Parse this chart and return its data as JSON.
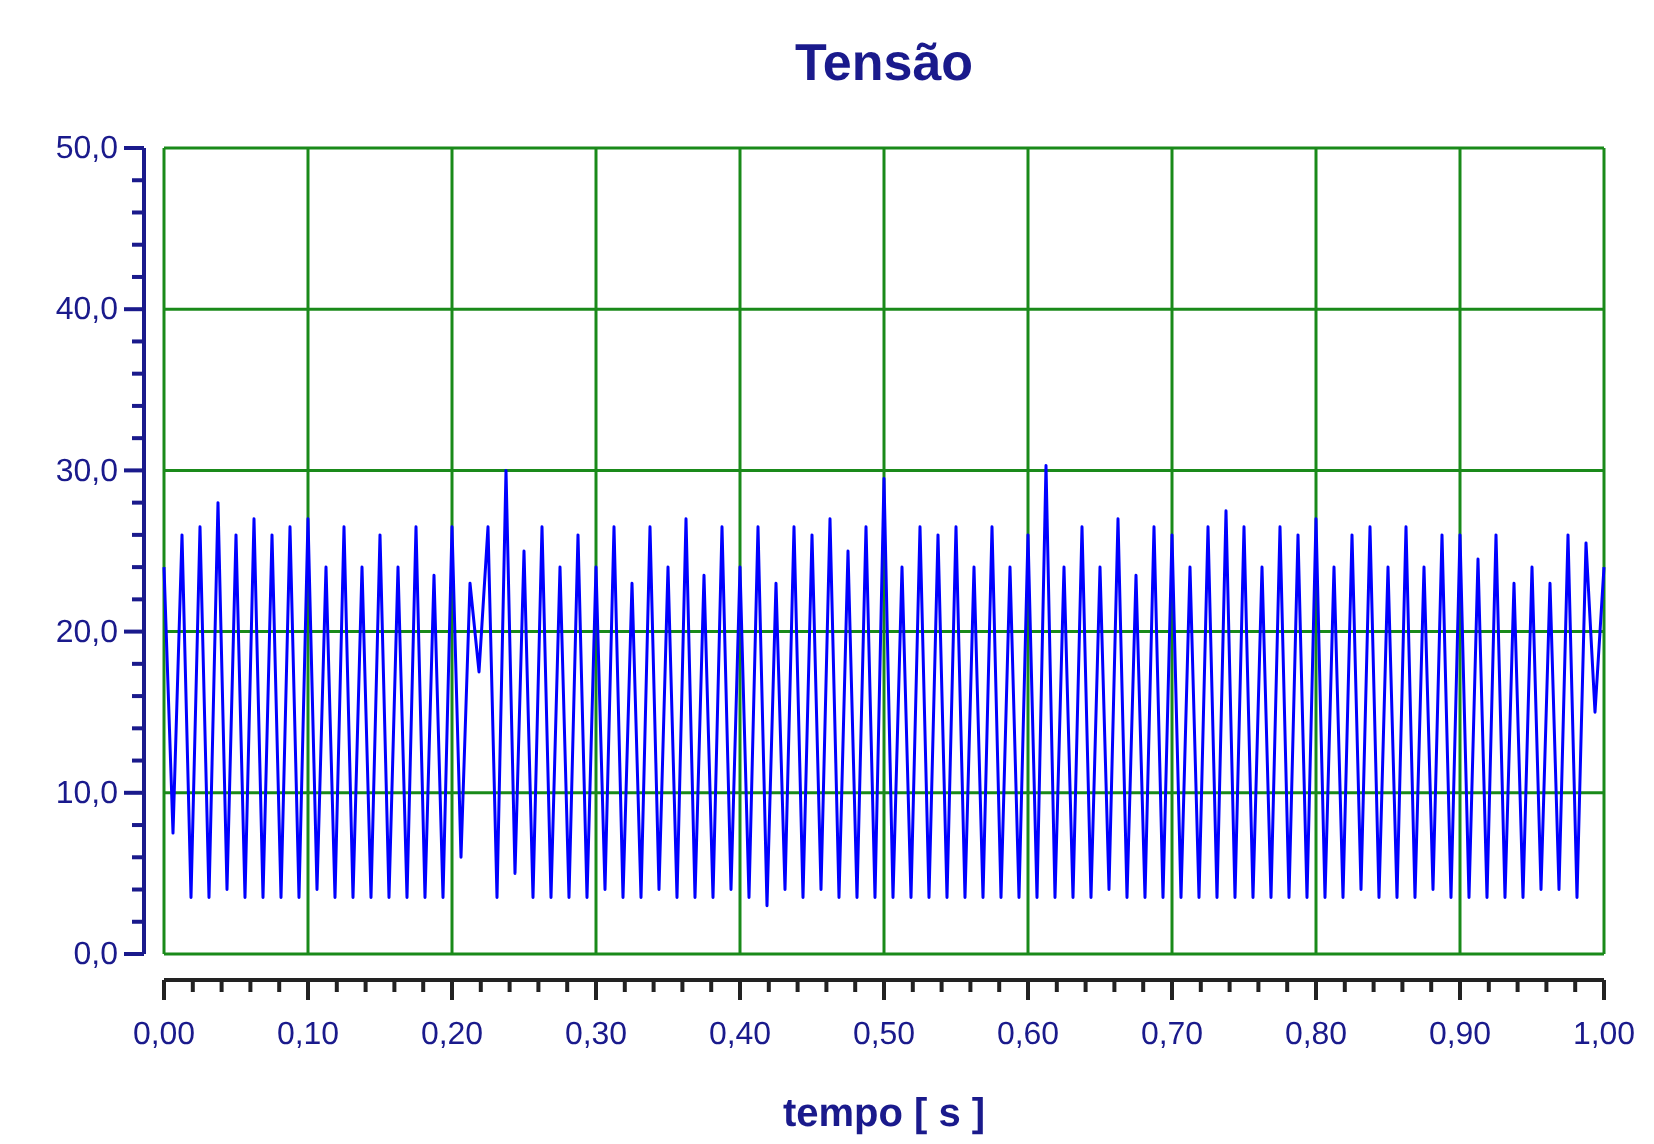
{
  "chart_data": {
    "type": "line",
    "title": "Tensão",
    "xlabel": "tempo [ s ]",
    "xlim": [
      0,
      1
    ],
    "ylim": [
      0,
      50
    ],
    "xticks": [
      {
        "value": 0,
        "label": "0,00"
      },
      {
        "value": 0.1,
        "label": "0,10"
      },
      {
        "value": 0.2,
        "label": "0,20"
      },
      {
        "value": 0.3,
        "label": "0,30"
      },
      {
        "value": 0.4,
        "label": "0,40"
      },
      {
        "value": 0.5,
        "label": "0,50"
      },
      {
        "value": 0.6,
        "label": "0,60"
      },
      {
        "value": 0.7,
        "label": "0,70"
      },
      {
        "value": 0.8,
        "label": "0,80"
      },
      {
        "value": 0.9,
        "label": "0,90"
      },
      {
        "value": 1,
        "label": "1,00"
      }
    ],
    "yticks": [
      {
        "value": 0,
        "label": "0,0"
      },
      {
        "value": 10,
        "label": "10,0"
      },
      {
        "value": 20,
        "label": "20,0"
      },
      {
        "value": 30,
        "label": "30,0"
      },
      {
        "value": 40,
        "label": "40,0"
      },
      {
        "value": 50,
        "label": "50,0"
      }
    ],
    "grid": true,
    "marker": "none",
    "line_style": "solid",
    "x": [
      0,
      0.00625,
      0.0125,
      0.01875,
      0.025,
      0.03125,
      0.0375,
      0.04375,
      0.05,
      0.05625,
      0.0625,
      0.06875,
      0.075,
      0.08125,
      0.0875,
      0.09375,
      0.1,
      0.10625,
      0.1125,
      0.11875,
      0.125,
      0.13125,
      0.1375,
      0.14375,
      0.15,
      0.15625,
      0.1625,
      0.16875,
      0.175,
      0.18125,
      0.1875,
      0.19375,
      0.2,
      0.20625,
      0.2125,
      0.21875,
      0.225,
      0.23125,
      0.2375,
      0.24375,
      0.25,
      0.25625,
      0.2625,
      0.26875,
      0.275,
      0.28125,
      0.2875,
      0.29375,
      0.3,
      0.30625,
      0.3125,
      0.31875,
      0.325,
      0.33125,
      0.3375,
      0.34375,
      0.35,
      0.35625,
      0.3625,
      0.36875,
      0.375,
      0.38125,
      0.3875,
      0.39375,
      0.4,
      0.40625,
      0.4125,
      0.41875,
      0.425,
      0.43125,
      0.4375,
      0.44375,
      0.45,
      0.45625,
      0.4625,
      0.46875,
      0.475,
      0.48125,
      0.4875,
      0.49375,
      0.5,
      0.50625,
      0.5125,
      0.51875,
      0.525,
      0.53125,
      0.5375,
      0.54375,
      0.55,
      0.55625,
      0.5625,
      0.56875,
      0.575,
      0.58125,
      0.5875,
      0.59375,
      0.6,
      0.60625,
      0.6125,
      0.61875,
      0.625,
      0.63125,
      0.6375,
      0.64375,
      0.65,
      0.65625,
      0.6625,
      0.66875,
      0.675,
      0.68125,
      0.6875,
      0.69375,
      0.7,
      0.70625,
      0.7125,
      0.71875,
      0.725,
      0.73125,
      0.7375,
      0.74375,
      0.75,
      0.75625,
      0.7625,
      0.76875,
      0.775,
      0.78125,
      0.7875,
      0.79375,
      0.8,
      0.80625,
      0.8125,
      0.81875,
      0.825,
      0.83125,
      0.8375,
      0.84375,
      0.85,
      0.85625,
      0.8625,
      0.86875,
      0.875,
      0.88125,
      0.8875,
      0.89375,
      0.9,
      0.90625,
      0.9125,
      0.91875,
      0.925,
      0.93125,
      0.9375,
      0.94375,
      0.95,
      0.95625,
      0.9625,
      0.96875,
      0.975,
      0.98125,
      0.9875,
      0.99375,
      1
    ],
    "series": [
      {
        "color": "#0000ff",
        "values": [
          24,
          7.5,
          26,
          3.5,
          26.5,
          3.5,
          28,
          4,
          26,
          3.5,
          27,
          3.5,
          26,
          3.5,
          26.5,
          3.5,
          27,
          4,
          24,
          3.5,
          26.5,
          3.5,
          24,
          3.5,
          26,
          3.5,
          24,
          3.5,
          26.5,
          3.5,
          23.5,
          3.5,
          26.5,
          6,
          23,
          17.5,
          26.5,
          3.5,
          30,
          5,
          25,
          3.5,
          26.5,
          3.5,
          24,
          3.5,
          26,
          3.5,
          24,
          4,
          26.5,
          3.5,
          23,
          3.5,
          26.5,
          4,
          24,
          3.5,
          27,
          3.5,
          23.5,
          3.5,
          26.5,
          4,
          24,
          3.5,
          26.5,
          3,
          23,
          4,
          26.5,
          3.5,
          26,
          4,
          27,
          3.5,
          25,
          3.5,
          26.5,
          3.5,
          29.5,
          3.5,
          24,
          3.5,
          26.5,
          3.5,
          26,
          3.5,
          26.5,
          3.5,
          24,
          3.5,
          26.5,
          3.5,
          24,
          3.5,
          26,
          3.5,
          30.3,
          3.5,
          24,
          3.5,
          26.5,
          3.5,
          24,
          4,
          27,
          3.5,
          23.5,
          3.5,
          26.5,
          3.5,
          26,
          3.5,
          24,
          3.5,
          26.5,
          3.5,
          27.5,
          3.5,
          26.5,
          3.5,
          24,
          3.5,
          26.5,
          3.5,
          26,
          3.5,
          27,
          3.5,
          24,
          3.5,
          26,
          4,
          26.5,
          3.5,
          24,
          3.5,
          26.5,
          3.5,
          24,
          4,
          26,
          3.5,
          26,
          3.5,
          24.5,
          3.5,
          26,
          3.5,
          23,
          3.5,
          24,
          4,
          23,
          4,
          26,
          3.5,
          25.5,
          15,
          24
        ]
      }
    ]
  }
}
